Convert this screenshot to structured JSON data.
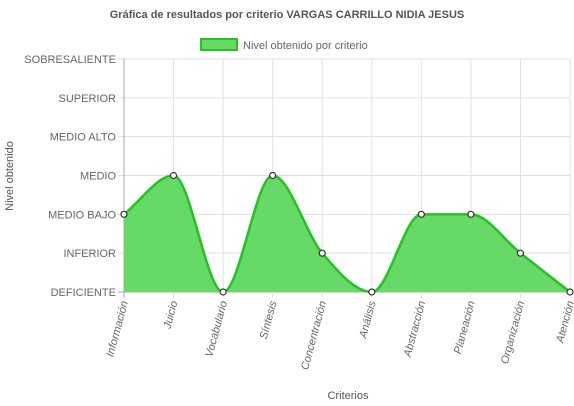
{
  "chart_data": {
    "type": "area",
    "title": "Gráfica de resultados por criterio VARGAS CARRILLO NIDIA JESUS",
    "xlabel": "Criterios",
    "ylabel": "Nivel obtenido",
    "categories": [
      "Información",
      "Juicio",
      "Vocabulario",
      "Síntesis",
      "Concentración",
      "Análisis",
      "Abstracción",
      "Planeación",
      "Organización",
      "Atención"
    ],
    "y_levels": [
      "DEFICIENTE",
      "INFERIOR",
      "MEDIO BAJO",
      "MEDIO",
      "MEDIO ALTO",
      "SUPERIOR",
      "SOBRESALIENTE"
    ],
    "ylim": [
      0,
      6
    ],
    "series": [
      {
        "name": "Nivel obtenido por criterio",
        "values": [
          2,
          3,
          0,
          3,
          1,
          0,
          2,
          2,
          1,
          0
        ]
      }
    ],
    "legend_position": "top-center",
    "grid": true,
    "colors": {
      "fill": "#66d966",
      "line": "#22c322",
      "grid": "#e0e0e0",
      "axis": "#999999"
    }
  }
}
